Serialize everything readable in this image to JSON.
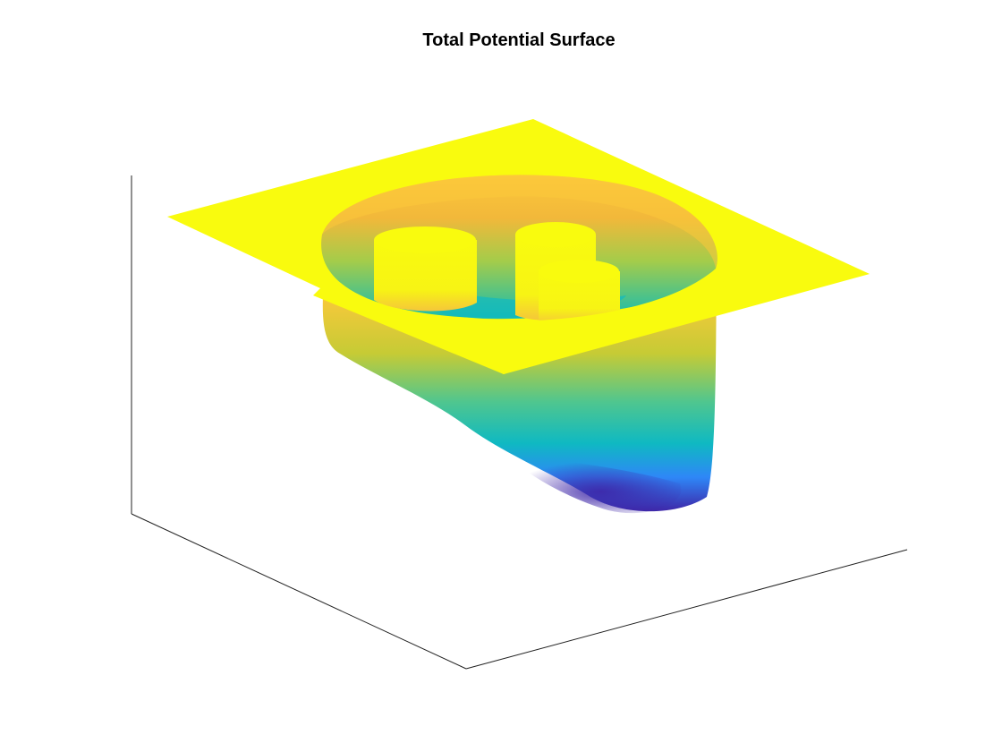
{
  "chart_data": {
    "type": "surface",
    "title": "Total Potential Surface",
    "xlabel": "",
    "ylabel": "",
    "zlabel": "",
    "colormap": "parula",
    "colormap_colors": [
      "#3e26a8",
      "#2e87f7",
      "#0bbbb6",
      "#66cc66",
      "#f2b83a",
      "#f9fb0e"
    ],
    "grid": false,
    "axes_visible": "box lines only, no ticks",
    "surface_features": [
      {
        "name": "outer plateau",
        "level": "max"
      },
      {
        "name": "central well",
        "level": "min"
      },
      {
        "name": "left cylinder barrier",
        "level": "max"
      },
      {
        "name": "back-right cylinder barrier",
        "level": "max"
      },
      {
        "name": "front-right cylinder barrier",
        "level": "max"
      }
    ]
  }
}
